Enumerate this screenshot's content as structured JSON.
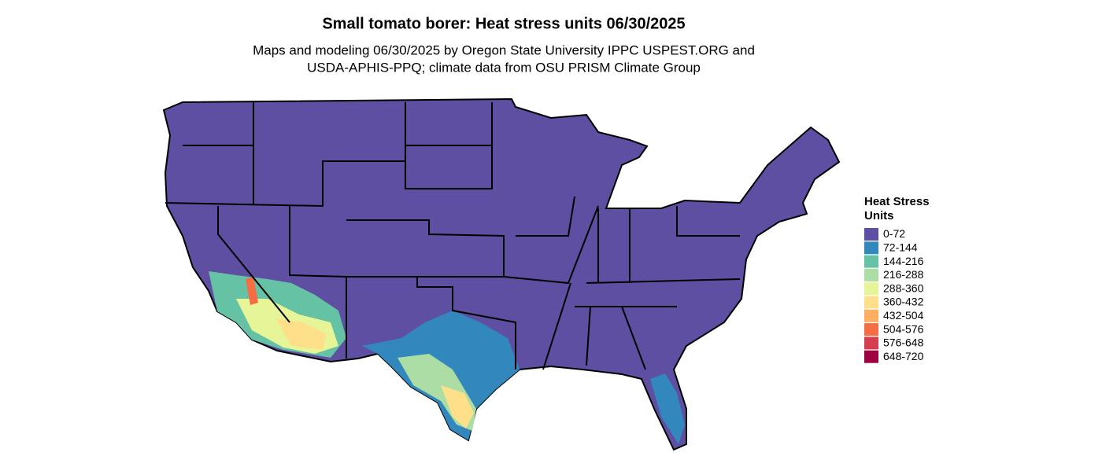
{
  "title": "Small tomato borer: Heat stress units 06/30/2025",
  "subtitle": [
    "Maps and modeling 06/30/2025 by Oregon State University IPPC USPEST.ORG and",
    "USDA-APHIS-PPQ; climate data from OSU PRISM Climate Group"
  ],
  "legend": {
    "title": [
      "Heat Stress",
      "Units"
    ],
    "items": [
      {
        "label": "0-72",
        "color": "#5e4fa2"
      },
      {
        "label": "72-144",
        "color": "#3288bd"
      },
      {
        "label": "144-216",
        "color": "#66c2a5"
      },
      {
        "label": "216-288",
        "color": "#abdda4"
      },
      {
        "label": "288-360",
        "color": "#e6f598"
      },
      {
        "label": "360-432",
        "color": "#fee08b"
      },
      {
        "label": "432-504",
        "color": "#fdae61"
      },
      {
        "label": "504-576",
        "color": "#f46d43"
      },
      {
        "label": "576-648",
        "color": "#d53e4f"
      },
      {
        "label": "648-720",
        "color": "#9e0142"
      }
    ]
  }
}
